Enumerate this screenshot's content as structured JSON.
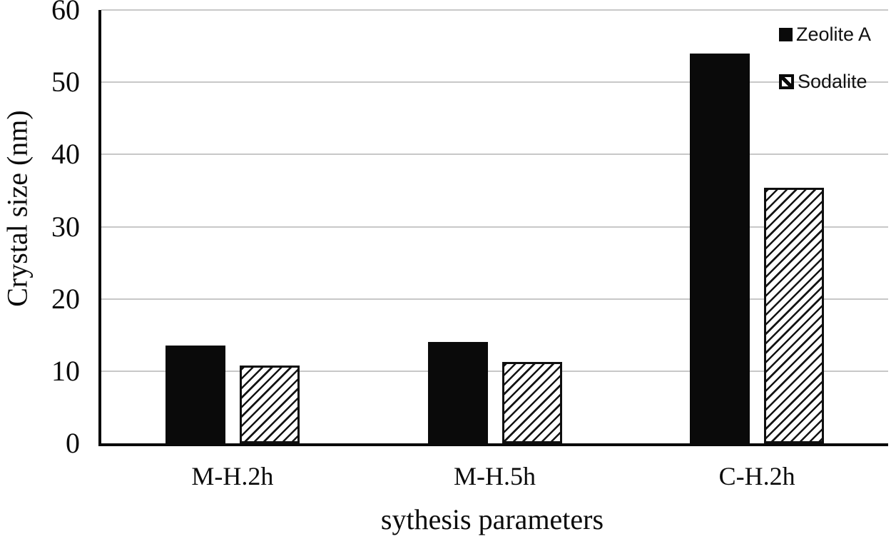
{
  "chart_data": {
    "type": "bar",
    "title": "",
    "xlabel": "sythesis parameters",
    "ylabel": "Crystal size (nm)",
    "categories": [
      "M-H.2h",
      "M-H.5h",
      "C-H.2h"
    ],
    "series": [
      {
        "name": "Zeolite A",
        "values": [
          13.5,
          14,
          54
        ],
        "style": "solid",
        "color": "#0a0a0a"
      },
      {
        "name": "Sodalite",
        "values": [
          10.8,
          11.3,
          35.4
        ],
        "style": "hatched",
        "color": "#0a0a0a"
      }
    ],
    "ylim": [
      0,
      60
    ],
    "yticks": [
      0,
      10,
      20,
      30,
      40,
      50,
      60
    ],
    "grid": "horizontal",
    "gridline_color": "#c8c8c8",
    "legend_position": "top-right",
    "background": "#ffffff"
  }
}
